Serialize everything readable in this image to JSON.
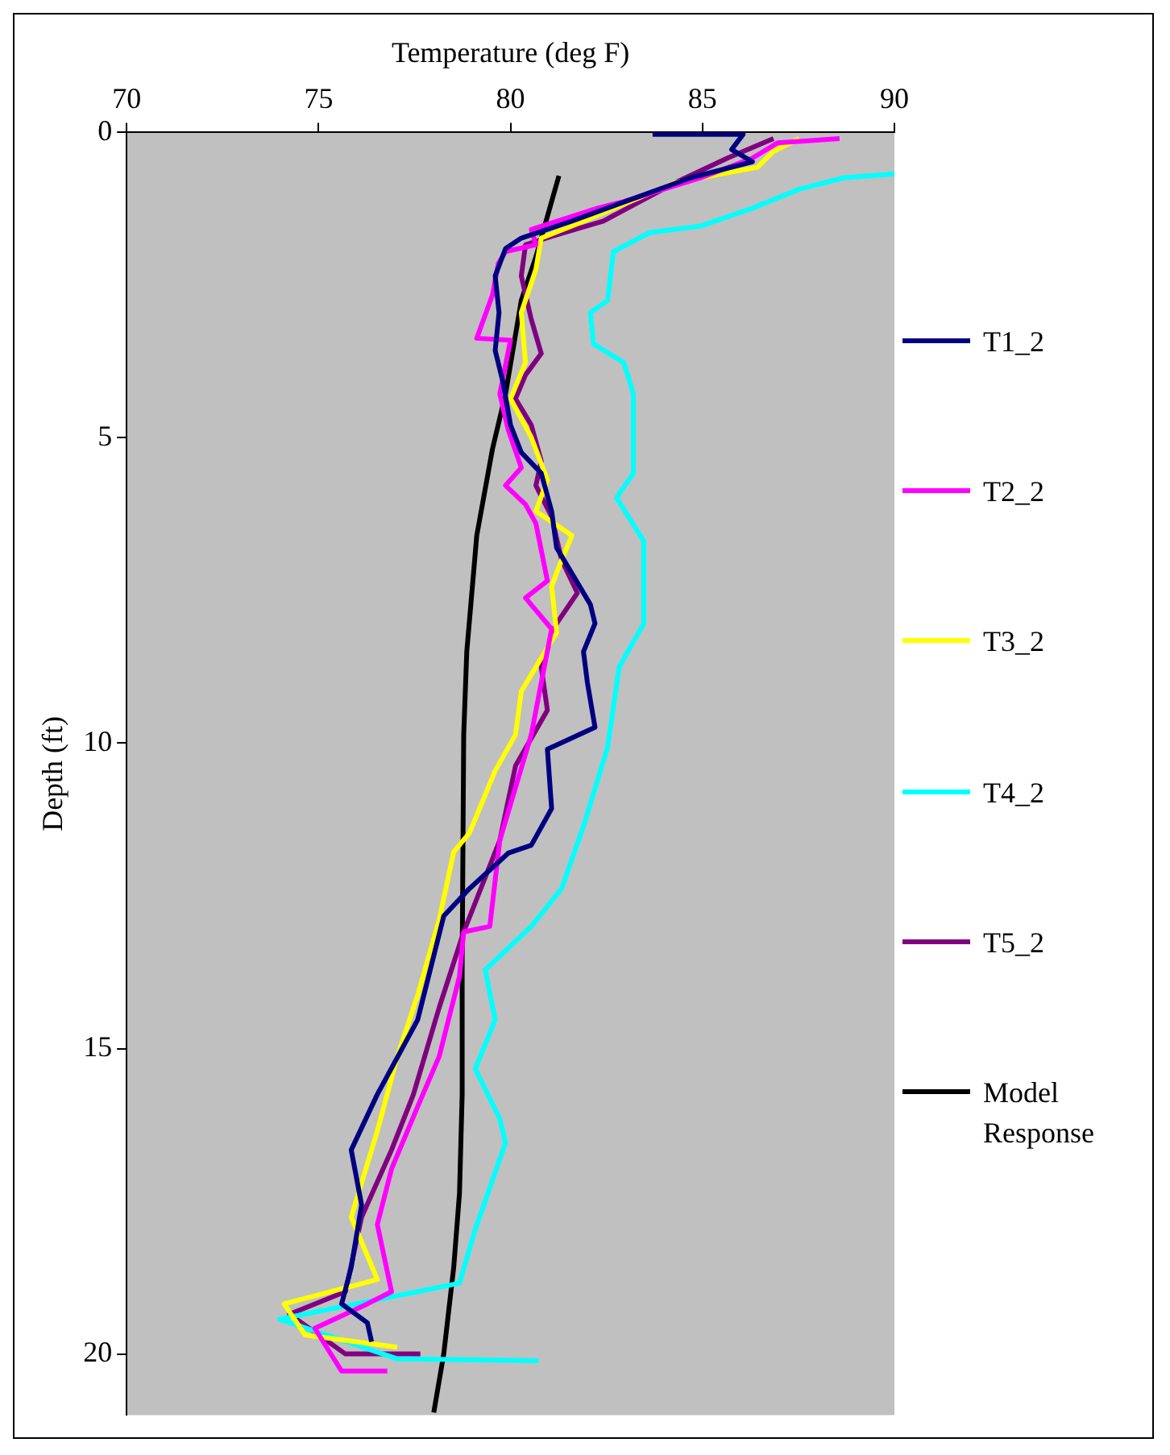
{
  "chart_data": {
    "type": "line",
    "xlabel": "Temperature (deg F)",
    "ylabel": "Depth (ft)",
    "xlim": [
      70,
      90
    ],
    "xticks": [
      70,
      75,
      80,
      85,
      90
    ],
    "ylim": [
      21,
      0
    ],
    "yticks": [
      0,
      5,
      10,
      15,
      20
    ],
    "grid": false,
    "legend": "right",
    "marker": "none",
    "line_style": "solid",
    "series": [
      {
        "name": "T1_2",
        "color": "#000080",
        "x": [
          83.7,
          86.06,
          85.76,
          86.3,
          84.7,
          81.6,
          80.28,
          79.87,
          79.6,
          79.7,
          79.6,
          79.8,
          80.0,
          80.28,
          80.8,
          81.07,
          81.2,
          82.08,
          82.2,
          81.9,
          82.0,
          82.2,
          80.96,
          81.07,
          80.54,
          79.94,
          78.93,
          78.26,
          77.58,
          76.53,
          75.85,
          76.12,
          75.85,
          75.6,
          76.27,
          76.38
        ],
        "values": [
          0.03,
          0.03,
          0.28,
          0.48,
          0.74,
          1.45,
          1.73,
          1.9,
          2.35,
          2.95,
          3.57,
          4.08,
          4.79,
          5.24,
          5.58,
          6.2,
          6.8,
          7.73,
          8.04,
          8.5,
          9.0,
          9.74,
          10.1,
          11.07,
          11.67,
          11.8,
          12.38,
          12.83,
          14.53,
          15.75,
          16.66,
          17.56,
          18.58,
          19.18,
          19.49,
          19.8
        ]
      },
      {
        "name": "T2_2",
        "color": "#ff00ff",
        "x": [
          88.57,
          86.96,
          86.3,
          84.97,
          82.95,
          82.27,
          80.54,
          80.66,
          79.87,
          79.68,
          79.53,
          79.12,
          80.0,
          79.72,
          79.94,
          80.28,
          79.87,
          80.39,
          80.66,
          80.96,
          80.39,
          81.07,
          80.54,
          79.72,
          79.46,
          78.78,
          78.67,
          78.14,
          77.58,
          76.9,
          76.53,
          76.9,
          76.27,
          74.9,
          75.6,
          76.79
        ],
        "values": [
          0.1,
          0.17,
          0.42,
          0.74,
          1.13,
          1.24,
          1.59,
          1.84,
          1.95,
          2.15,
          2.66,
          3.37,
          3.4,
          4.28,
          4.87,
          5.49,
          5.78,
          6.09,
          6.4,
          7.34,
          7.62,
          8.13,
          9.86,
          11.59,
          13.0,
          13.09,
          13.82,
          15.13,
          15.95,
          16.97,
          17.88,
          18.98,
          19.18,
          19.58,
          20.28,
          20.28
        ]
      },
      {
        "name": "T3_2",
        "color": "#ffff00",
        "x": [
          87.52,
          86.85,
          86.43,
          84.3,
          81.6,
          80.8,
          80.66,
          80.28,
          80.39,
          80.0,
          80.54,
          80.96,
          80.66,
          81.6,
          81.33,
          81.07,
          81.2,
          80.28,
          80.13,
          79.6,
          78.93,
          78.52,
          78.14,
          77.58,
          77.05,
          76.53,
          75.85,
          76.53,
          74.1,
          74.65,
          77.05
        ],
        "values": [
          0.1,
          0.31,
          0.57,
          0.82,
          1.53,
          1.73,
          2.24,
          2.95,
          3.77,
          4.36,
          4.99,
          5.69,
          6.2,
          6.6,
          7.0,
          7.43,
          8.19,
          9.15,
          9.86,
          10.45,
          11.47,
          11.78,
          12.89,
          14.13,
          15.13,
          16.35,
          17.76,
          18.78,
          19.18,
          19.69,
          19.89
        ]
      },
      {
        "name": "T4_2",
        "color": "#00ffff",
        "x": [
          90,
          88.7,
          87.52,
          86.3,
          84.97,
          83.62,
          82.68,
          82.53,
          82.08,
          82.16,
          82.95,
          83.2,
          83.2,
          82.76,
          83.47,
          83.47,
          82.83,
          82.53,
          81.9,
          81.33,
          80.54,
          79.34,
          79.6,
          79.08,
          79.72,
          79.87,
          79.08,
          78.67,
          77.58,
          73.98,
          77.05,
          80.73
        ],
        "values": [
          0.68,
          0.74,
          0.93,
          1.24,
          1.53,
          1.64,
          1.95,
          2.75,
          2.95,
          3.46,
          3.77,
          4.28,
          5.58,
          5.98,
          6.69,
          8.04,
          8.75,
          10.06,
          11.36,
          12.38,
          13.0,
          13.71,
          14.53,
          15.33,
          16.15,
          16.54,
          17.96,
          18.84,
          18.98,
          19.43,
          20.08,
          20.11
        ]
      },
      {
        "name": "T5_2",
        "color": "#800080",
        "x": [
          86.85,
          85.65,
          84.3,
          82.42,
          81.07,
          80.39,
          80.28,
          80.54,
          80.8,
          80.39,
          80.13,
          80.54,
          80.8,
          80.66,
          81.07,
          81.33,
          81.74,
          81.2,
          80.8,
          80.96,
          80.13,
          79.72,
          78.78,
          78.14,
          77.47,
          76.9,
          76.12,
          75.7,
          74.24,
          75.7,
          77.65
        ],
        "values": [
          0.1,
          0.42,
          0.82,
          1.45,
          1.7,
          1.84,
          2.35,
          3.06,
          3.62,
          3.97,
          4.36,
          4.79,
          5.38,
          5.78,
          6.29,
          7.0,
          7.54,
          8.04,
          8.75,
          9.46,
          10.37,
          11.59,
          13.09,
          14.33,
          15.75,
          16.66,
          17.76,
          18.98,
          19.35,
          20.0,
          20.0
        ]
      },
      {
        "name": "Model Response",
        "color": "#000000",
        "x": [
          81.26,
          80.66,
          80.28,
          79.87,
          79.53,
          79.12,
          78.86,
          78.78,
          78.74,
          78.74,
          78.67,
          78.52,
          78.26,
          78.0
        ],
        "values": [
          0.71,
          2.04,
          2.75,
          4.28,
          5.18,
          6.6,
          8.5,
          9.86,
          13.6,
          15.75,
          17.37,
          18.58,
          20.0,
          20.96
        ]
      }
    ]
  }
}
